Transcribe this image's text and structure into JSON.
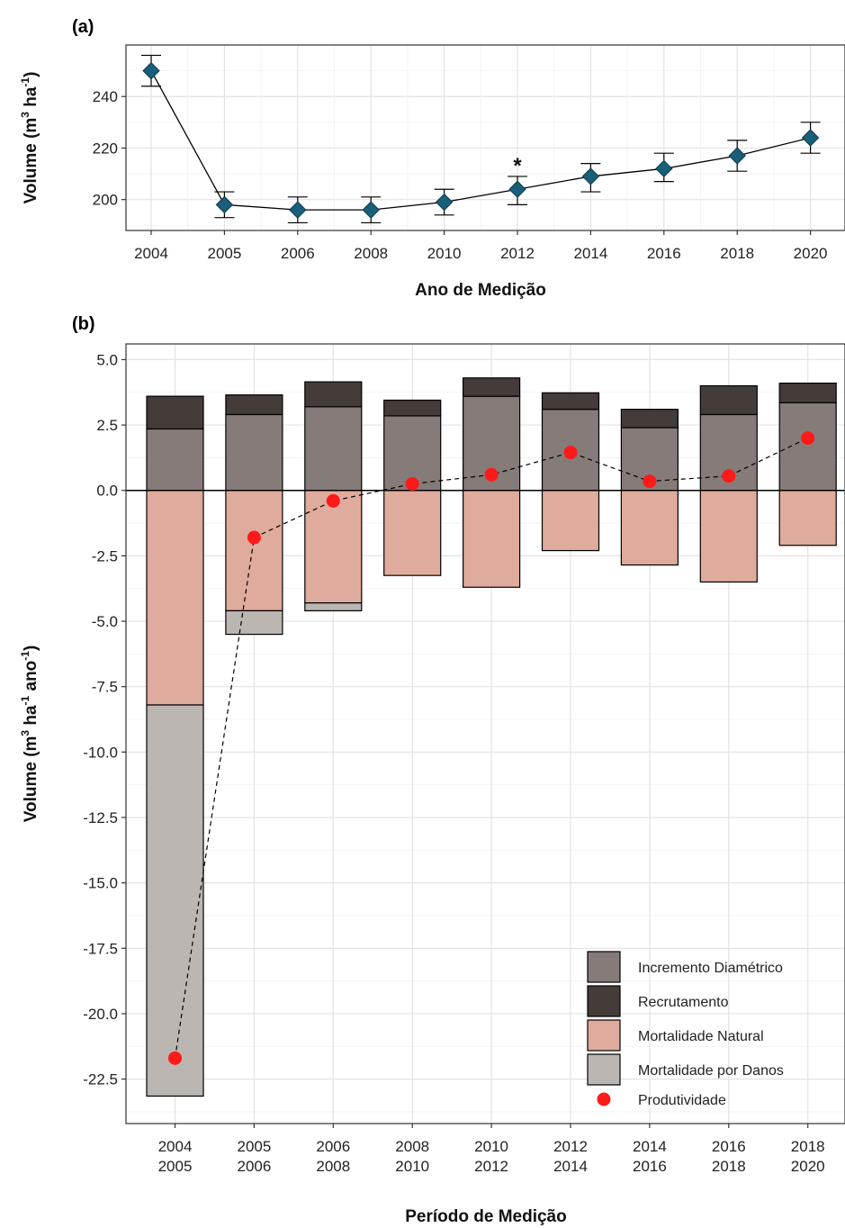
{
  "chart_data": [
    {
      "panel_label": "(a)",
      "type": "line",
      "xlabel": "Ano de Medição",
      "ylabel": "Volume (m³ ha⁻¹)",
      "ylabel_parts": {
        "base": "Volume (m",
        "sup1": "3",
        "mid": " ha",
        "sup2": "-1",
        "end": ")"
      },
      "categories": [
        "2004",
        "2005",
        "2006",
        "2008",
        "2010",
        "2012",
        "2014",
        "2016",
        "2018",
        "2020"
      ],
      "values": [
        250,
        198,
        196,
        196,
        199,
        204,
        209,
        212,
        217,
        224
      ],
      "error_low": [
        244,
        193,
        191,
        191,
        194,
        198,
        203,
        207,
        211,
        218
      ],
      "error_high": [
        256,
        203,
        201,
        201,
        204,
        209,
        214,
        218,
        223,
        230
      ],
      "annotations": [
        {
          "category": "2012",
          "text": "*"
        }
      ],
      "yticks": [
        200,
        220,
        240
      ],
      "ylim": [
        188,
        260
      ],
      "marker_color": "#1a5f7a"
    },
    {
      "panel_label": "(b)",
      "type": "bar",
      "xlabel": "Período de Medição",
      "ylabel": "Volume (m³ ha⁻¹ ano⁻¹)",
      "ylabel_parts": {
        "base": "Volume (m",
        "sup1": "3",
        "mid": " ha",
        "sup2": "-1",
        "mid2": " ano",
        "sup3": "-1",
        "end": ")"
      },
      "categories": [
        [
          "2004",
          "2005"
        ],
        [
          "2005",
          "2006"
        ],
        [
          "2006",
          "2008"
        ],
        [
          "2008",
          "2010"
        ],
        [
          "2010",
          "2012"
        ],
        [
          "2012",
          "2014"
        ],
        [
          "2014",
          "2016"
        ],
        [
          "2016",
          "2018"
        ],
        [
          "2018",
          "2020"
        ]
      ],
      "series": [
        {
          "name": "Incremento Diamétrico",
          "color": "#857b78",
          "values": [
            2.35,
            2.9,
            3.2,
            2.85,
            3.6,
            3.1,
            2.4,
            2.9,
            3.35
          ]
        },
        {
          "name": "Recrutamento",
          "color": "#433c39",
          "values": [
            1.25,
            0.75,
            0.95,
            0.6,
            0.7,
            0.63,
            0.7,
            1.1,
            0.75
          ]
        },
        {
          "name": "Mortalidade Natural",
          "color": "#dfab9c",
          "values": [
            -8.2,
            -4.6,
            -4.3,
            -3.25,
            -3.7,
            -2.3,
            -2.85,
            -3.5,
            -2.1
          ]
        },
        {
          "name": "Mortalidade por Danos",
          "color": "#bbb6b1",
          "values": [
            -14.95,
            -0.9,
            -0.3,
            0,
            0,
            0,
            0,
            0,
            0
          ]
        },
        {
          "name": "Produtividade",
          "color": "#ff1a1a",
          "type": "point",
          "values": [
            -21.7,
            -1.8,
            -0.4,
            0.25,
            0.6,
            1.45,
            0.35,
            0.55,
            2.0
          ]
        }
      ],
      "yticks": [
        5.0,
        2.5,
        0.0,
        -2.5,
        -5.0,
        -7.5,
        -10.0,
        -12.5,
        -15.0,
        -17.5,
        -20.0,
        -22.5
      ],
      "ytick_labels": [
        "5.0",
        "2.5",
        "0.0",
        "-2.5",
        "-5.0",
        "-7.5",
        "-10.0",
        "-12.5",
        "-15.0",
        "-17.5",
        "-20.0",
        "-22.5"
      ],
      "ylim": [
        -24.2,
        5.6
      ],
      "legend_position": "bottom-right"
    }
  ]
}
